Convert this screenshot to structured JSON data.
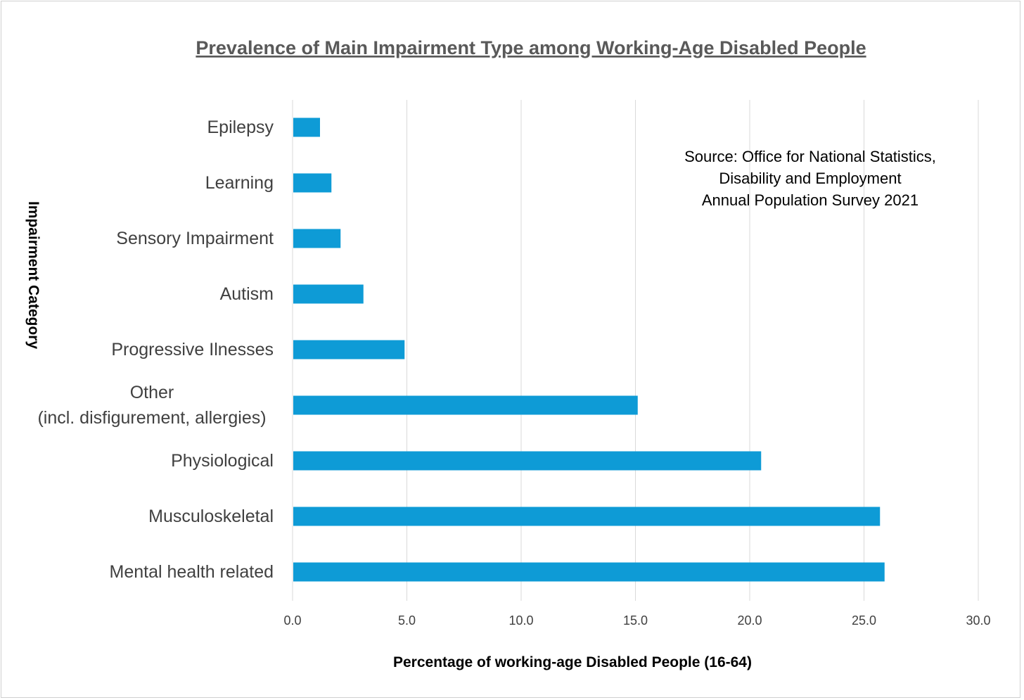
{
  "chart_data": {
    "type": "bar",
    "orientation": "horizontal",
    "title": "Prevalence of Main Impairment Type among Working-Age Disabled People",
    "xlabel": "Percentage of working-age Disabled People (16-64)",
    "ylabel": "Impairment Category",
    "xlim": [
      0,
      30
    ],
    "x_ticks": [
      "0.0",
      "5.0",
      "10.0",
      "15.0",
      "20.0",
      "25.0",
      "30.0"
    ],
    "grid": true,
    "categories": [
      [
        "Epilepsy"
      ],
      [
        "Learning"
      ],
      [
        "Sensory Impairment"
      ],
      [
        "Autism"
      ],
      [
        "Progressive Ilnesses"
      ],
      [
        "Other",
        "(incl. disfigurement, allergies)"
      ],
      [
        "Physiological"
      ],
      [
        "Musculoskeletal"
      ],
      [
        "Mental health related"
      ]
    ],
    "values": [
      1.2,
      1.7,
      2.1,
      3.1,
      4.9,
      15.1,
      20.5,
      25.7,
      25.9
    ],
    "bar_color": "#0E9BD6",
    "annotation": [
      "Source: Office for National Statistics,",
      "Disability and Employment",
      "Annual Population Survey 2021"
    ]
  }
}
